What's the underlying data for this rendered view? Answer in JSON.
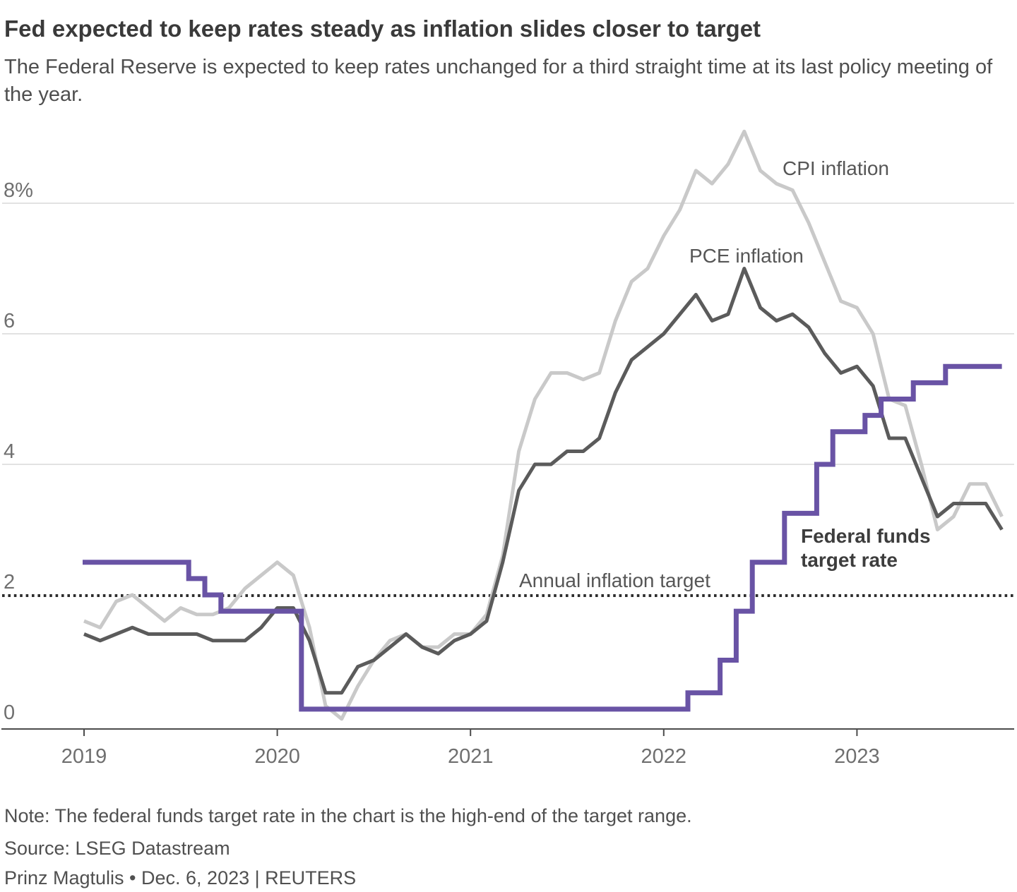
{
  "header": {
    "title": "Fed expected to keep rates steady as inflation slides closer to target",
    "subtitle": "The Federal Reserve is expected to keep rates unchanged for a third straight time at its last policy meeting of the year."
  },
  "chart_data": {
    "type": "line",
    "x_unit": "month",
    "x_start": "2019-01",
    "x_end": "2023-10",
    "ylim": [
      0,
      9.3
    ],
    "grid": "horizontal",
    "gridline_values": [
      4,
      6,
      8
    ],
    "y_ticks": [
      {
        "label": "0",
        "value": 0
      },
      {
        "label": "2",
        "value": 2
      },
      {
        "label": "4",
        "value": 4
      },
      {
        "label": "6",
        "value": 6
      },
      {
        "label": "8%",
        "value": 8
      }
    ],
    "x_ticks": [
      {
        "label": "2019",
        "month_index": 0
      },
      {
        "label": "2020",
        "month_index": 12
      },
      {
        "label": "2021",
        "month_index": 24
      },
      {
        "label": "2022",
        "month_index": 36
      },
      {
        "label": "2023",
        "month_index": 48
      }
    ],
    "target_line": {
      "label": "Annual inflation target",
      "value": 2,
      "color": "#2d2d2d"
    },
    "series": [
      {
        "name": "CPI inflation",
        "color": "#c9c9c9",
        "step": false,
        "values": [
          1.6,
          1.5,
          1.9,
          2.0,
          1.8,
          1.6,
          1.8,
          1.7,
          1.7,
          1.8,
          2.1,
          2.3,
          2.5,
          2.3,
          1.5,
          0.3,
          0.1,
          0.6,
          1.0,
          1.3,
          1.4,
          1.2,
          1.2,
          1.4,
          1.4,
          1.7,
          2.6,
          4.2,
          5.0,
          5.4,
          5.4,
          5.3,
          5.4,
          6.2,
          6.8,
          7.0,
          7.5,
          7.9,
          8.5,
          8.3,
          8.6,
          9.1,
          8.5,
          8.3,
          8.2,
          7.7,
          7.1,
          6.5,
          6.4,
          6.0,
          5.0,
          4.9,
          4.0,
          3.0,
          3.2,
          3.7,
          3.7,
          3.2
        ]
      },
      {
        "name": "PCE inflation",
        "color": "#5b5b5b",
        "step": false,
        "values": [
          1.4,
          1.3,
          1.4,
          1.5,
          1.4,
          1.4,
          1.4,
          1.4,
          1.3,
          1.3,
          1.3,
          1.5,
          1.8,
          1.8,
          1.3,
          0.5,
          0.5,
          0.9,
          1.0,
          1.2,
          1.4,
          1.2,
          1.1,
          1.3,
          1.4,
          1.6,
          2.5,
          3.6,
          4.0,
          4.0,
          4.2,
          4.2,
          4.4,
          5.1,
          5.6,
          5.8,
          6.0,
          6.3,
          6.6,
          6.2,
          6.3,
          7.0,
          6.4,
          6.2,
          6.3,
          6.1,
          5.7,
          5.4,
          5.5,
          5.2,
          4.4,
          4.4,
          3.8,
          3.2,
          3.4,
          3.4,
          3.4,
          3.0
        ]
      },
      {
        "name": "Federal funds target rate",
        "color": "#6953a5",
        "step": true,
        "values": [
          2.5,
          2.5,
          2.5,
          2.5,
          2.5,
          2.5,
          2.5,
          2.25,
          2.0,
          1.75,
          1.75,
          1.75,
          1.75,
          1.75,
          0.25,
          0.25,
          0.25,
          0.25,
          0.25,
          0.25,
          0.25,
          0.25,
          0.25,
          0.25,
          0.25,
          0.25,
          0.25,
          0.25,
          0.25,
          0.25,
          0.25,
          0.25,
          0.25,
          0.25,
          0.25,
          0.25,
          0.25,
          0.25,
          0.5,
          0.5,
          1.0,
          1.75,
          2.5,
          2.5,
          3.25,
          3.25,
          4.0,
          4.5,
          4.5,
          4.75,
          5.0,
          5.0,
          5.25,
          5.25,
          5.5,
          5.5,
          5.5,
          5.5
        ]
      }
    ]
  },
  "annotations": {
    "cpi_label": "CPI inflation",
    "pce_label": "PCE inflation",
    "fed_label_line1": "Federal funds",
    "fed_label_line2": "target rate",
    "target_label": "Annual inflation target"
  },
  "style": {
    "gridline_color": "#d8d8d8",
    "axis_color": "#4c4c4c",
    "tick_label_color": "#6f6f6f"
  },
  "footer": {
    "note": "Note: The federal funds target rate in the chart is the high-end of the target range.",
    "source": "Source: LSEG Datastream",
    "credit": "Prinz Magtulis • Dec. 6, 2023 | REUTERS"
  }
}
